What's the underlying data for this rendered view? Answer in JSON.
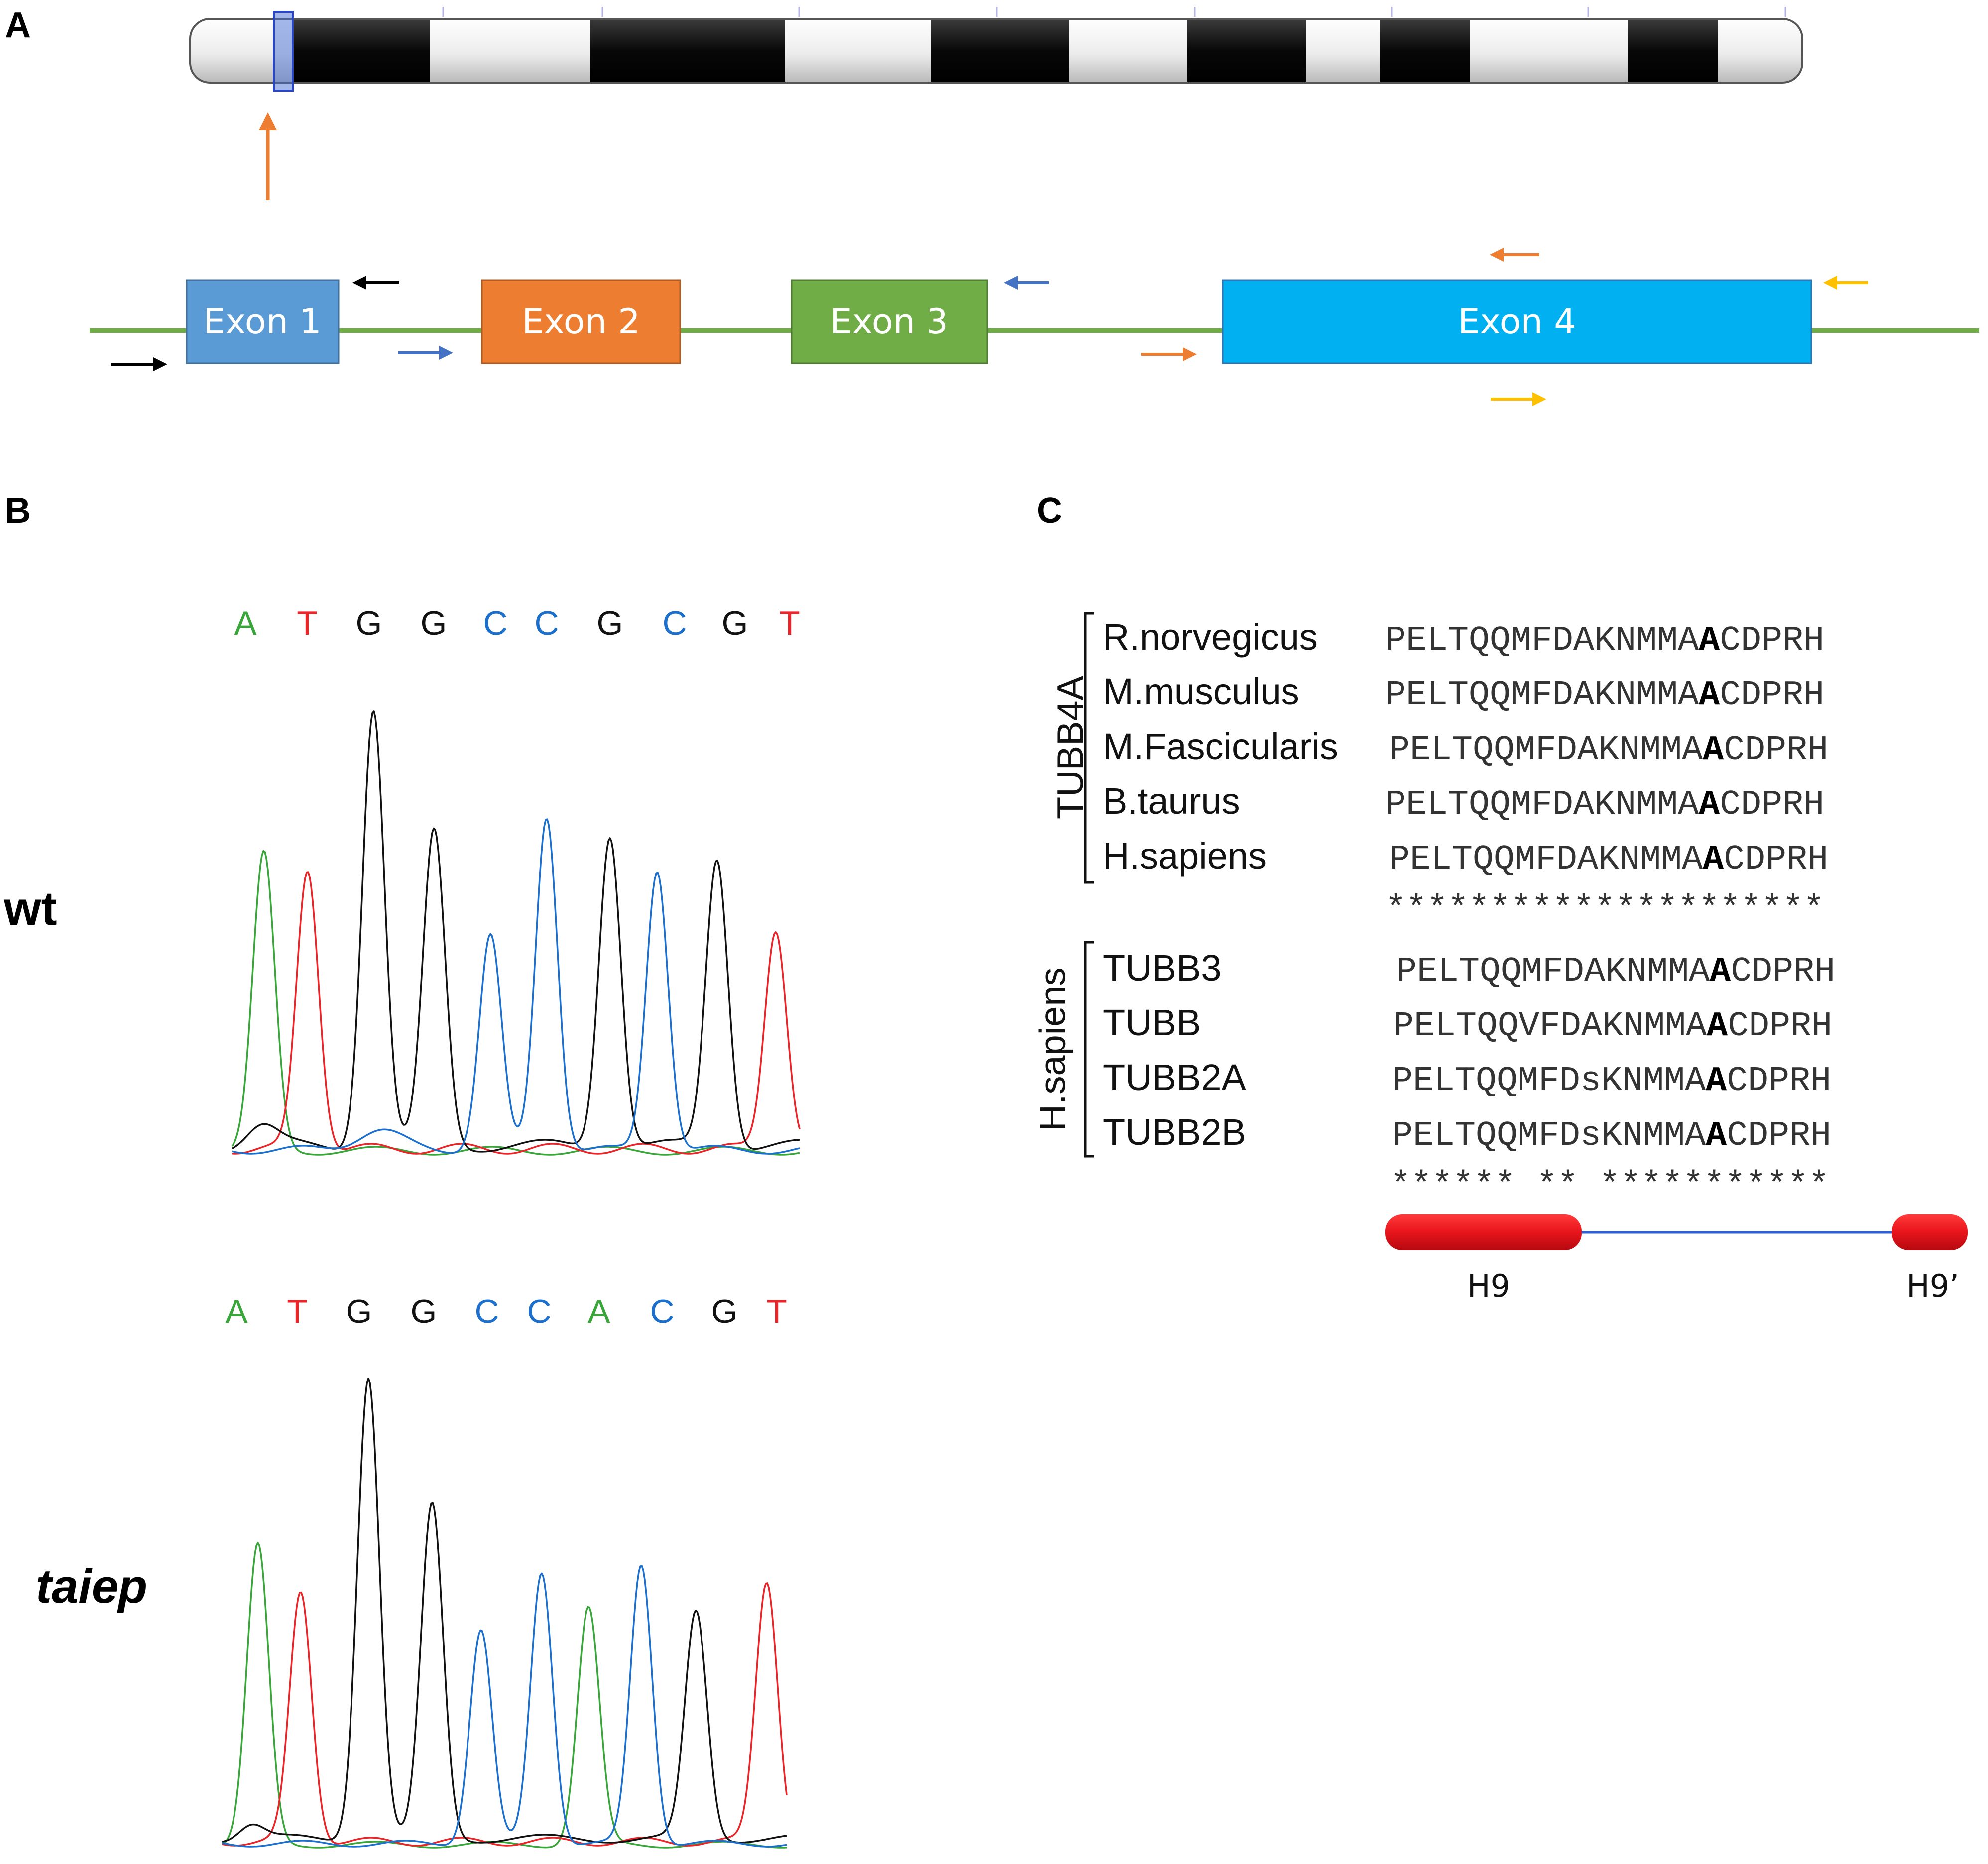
{
  "panels": {
    "a": "A",
    "b": "B",
    "c": "C"
  },
  "gene_model": {
    "exons": [
      {
        "label": "Exon 1",
        "color": "#5b9bd5"
      },
      {
        "label": "Exon 2",
        "color": "#ed7d31"
      },
      {
        "label": "Exon 3",
        "color": "#70ad47"
      },
      {
        "label": "Exon 4",
        "color": "#00b0f0"
      }
    ],
    "intron_color": "#70ad47",
    "primer_colors": [
      "#000000",
      "#4472c4",
      "#ed7d31",
      "#ffc000"
    ],
    "locus_marker_color": "#ed7d31"
  },
  "chromatograms": {
    "wt": {
      "label": "wt",
      "bases": [
        "A",
        "T",
        "G",
        "G",
        "C",
        "C",
        "G",
        "C",
        "G",
        "T"
      ]
    },
    "taiep": {
      "label": "taiep",
      "bases": [
        "A",
        "T",
        "G",
        "G",
        "C",
        "C",
        "A",
        "C",
        "G",
        "T"
      ]
    },
    "base_colors": {
      "A": "#3aa53a",
      "T": "#e8262a",
      "G": "#111111",
      "C": "#1d6fcc"
    }
  },
  "alignment": {
    "group1": {
      "label": "TUBB4A",
      "rows": [
        {
          "name": "R.norvegicus",
          "pre": "PELTQQMFDAKNMMA",
          "hl": "A",
          "post": "CDPRH"
        },
        {
          "name": "M.musculus",
          "pre": "PELTQQMFDAKNMMA",
          "hl": "A",
          "post": "CDPRH"
        },
        {
          "name": "M.Fascicularis",
          "pre": "PELTQQMFDAKNMMA",
          "hl": "A",
          "post": "CDPRH"
        },
        {
          "name": "B.taurus",
          "pre": "PELTQQMFDAKNMMA",
          "hl": "A",
          "post": "CDPRH"
        },
        {
          "name": "H.sapiens",
          "pre": "PELTQQMFDAKNMMA",
          "hl": "A",
          "post": "CDPRH"
        }
      ],
      "conservation": "*********************"
    },
    "group2": {
      "label": "H.sapiens",
      "rows": [
        {
          "name": "TUBB3",
          "pre": "PELTQQMFDAKNMMA",
          "hl": "A",
          "post": "CDPRH"
        },
        {
          "name": "TUBB",
          "pre": "PELTQQVFDAKNMMA",
          "hl": "A",
          "post": "CDPRH"
        },
        {
          "name": "TUBB2A",
          "pre": "PELTQQMFDsKNMMA",
          "hl": "A",
          "post": "CDPRH"
        },
        {
          "name": "TUBB2B",
          "pre": "PELTQQMFDsKNMMA",
          "hl": "A",
          "post": "CDPRH"
        }
      ],
      "conservation": "****** ** ***********"
    },
    "helices": [
      "H9",
      "H9’"
    ],
    "helix_color": "#e8141b",
    "loop_color": "#2f5fd0"
  }
}
